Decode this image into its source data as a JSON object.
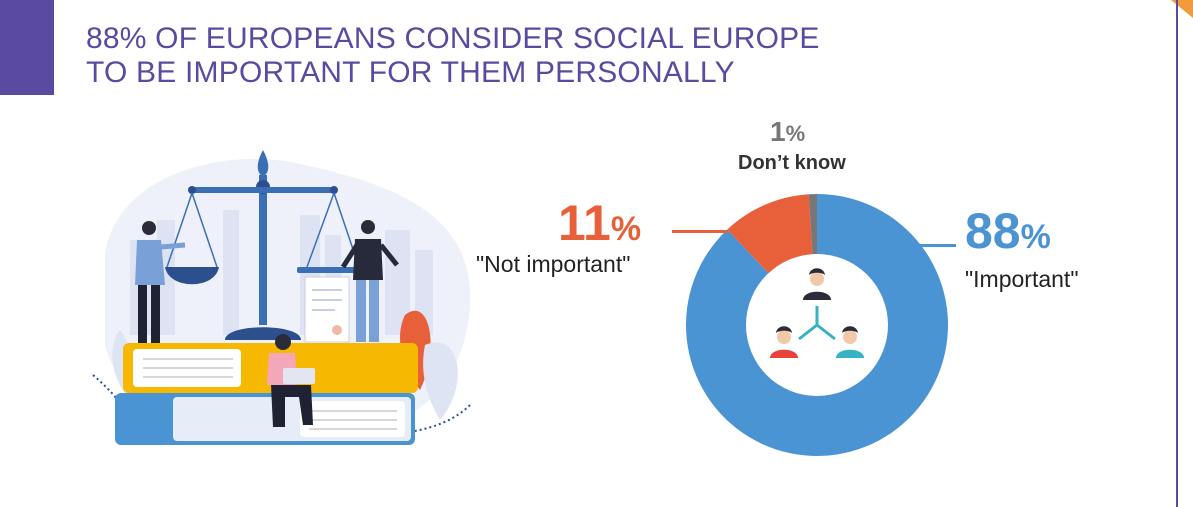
{
  "title": {
    "line1": "88% OF EUROPEANS CONSIDER SOCIAL EUROPE",
    "line2": "TO BE IMPORTANT FOR THEM PERSONALLY"
  },
  "colors": {
    "accent": "#5a4aa0",
    "important": "#4a94d4",
    "not_important": "#e8603a",
    "dont_know": "#777777",
    "corner": "#f39a3b"
  },
  "chart_data": {
    "type": "pie",
    "donut": true,
    "categories": [
      "\"Important\"",
      "\"Not important\"",
      "Don’t know"
    ],
    "values": [
      88,
      11,
      1
    ],
    "value_labels": [
      {
        "number": "88",
        "sign": "%"
      },
      {
        "number": "11",
        "sign": "%"
      },
      {
        "number": "1",
        "sign": "%"
      }
    ],
    "colors": [
      "#4a94d4",
      "#e8603a",
      "#777777"
    ],
    "center_icon": "people-network-icon"
  },
  "illustration_icon": "justice-scale-books-people-icon"
}
